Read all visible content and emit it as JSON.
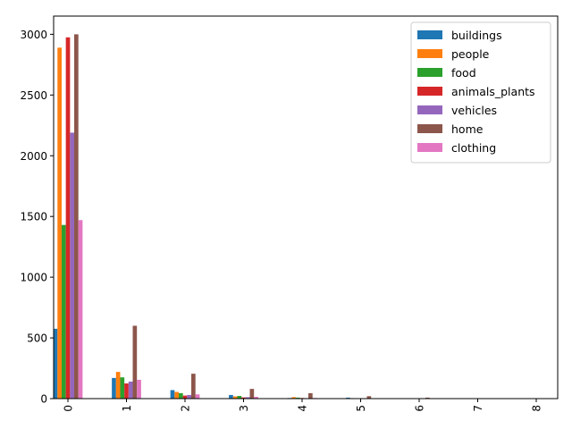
{
  "chart_data": {
    "type": "bar",
    "categories": [
      "0",
      "1",
      "2",
      "3",
      "4",
      "5",
      "6",
      "7",
      "8"
    ],
    "series": [
      {
        "name": "buildings",
        "color": "#1f77b4",
        "values": [
          575,
          170,
          70,
          30,
          5,
          8,
          2,
          1,
          1
        ]
      },
      {
        "name": "people",
        "color": "#ff7f0e",
        "values": [
          2890,
          220,
          55,
          18,
          12,
          4,
          1,
          1,
          0
        ]
      },
      {
        "name": "food",
        "color": "#2ca02c",
        "values": [
          1430,
          175,
          45,
          22,
          8,
          3,
          1,
          0,
          0
        ]
      },
      {
        "name": "animals_plants",
        "color": "#d62728",
        "values": [
          2975,
          125,
          25,
          10,
          5,
          2,
          1,
          0,
          0
        ]
      },
      {
        "name": "vehicles",
        "color": "#9467bd",
        "values": [
          2190,
          140,
          30,
          12,
          4,
          2,
          1,
          0,
          0
        ]
      },
      {
        "name": "home",
        "color": "#8c564b",
        "values": [
          3000,
          600,
          205,
          80,
          45,
          20,
          8,
          3,
          1
        ]
      },
      {
        "name": "clothing",
        "color": "#e377c2",
        "values": [
          1470,
          155,
          35,
          15,
          5,
          2,
          1,
          0,
          0
        ]
      }
    ],
    "title": "",
    "xlabel": "",
    "ylabel": "",
    "ylim": [
      0,
      3150
    ],
    "yticks": [
      0,
      500,
      1000,
      1500,
      2000,
      2500,
      3000
    ],
    "xtick_rotation": 90,
    "grid": false,
    "legend": "upper right"
  }
}
